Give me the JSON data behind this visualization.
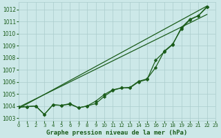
{
  "xlabel": "Graphe pression niveau de la mer (hPa)",
  "bg_color": "#cce8e8",
  "grid_color": "#aacccc",
  "line_color": "#1a5c1a",
  "text_color": "#1a5c1a",
  "ylim": [
    1002.8,
    1012.6
  ],
  "xlim": [
    0,
    23
  ],
  "yticks": [
    1003,
    1004,
    1005,
    1006,
    1007,
    1008,
    1009,
    1010,
    1011,
    1012
  ],
  "xticks": [
    0,
    1,
    2,
    3,
    4,
    5,
    6,
    7,
    8,
    9,
    10,
    11,
    12,
    13,
    14,
    15,
    16,
    17,
    18,
    19,
    20,
    21,
    22,
    23
  ],
  "series_lines": [
    {
      "x": [
        0,
        22
      ],
      "y": [
        1003.8,
        1012.3
      ]
    },
    {
      "x": [
        0,
        22
      ],
      "y": [
        1003.9,
        1011.6
      ]
    }
  ],
  "series_markers": [
    [
      1003.9,
      1003.95,
      1004.0,
      1003.3,
      1004.1,
      1004.05,
      1004.15,
      1003.85,
      1004.0,
      1004.2,
      1004.8,
      1005.3,
      1005.5,
      1005.5,
      1006.0,
      1006.2,
      1007.8,
      1008.5,
      1009.1,
      1010.5,
      1011.2,
      1011.5,
      1012.2
    ],
    [
      1003.9,
      1003.95,
      1004.0,
      1003.3,
      1004.1,
      1004.05,
      1004.2,
      1003.85,
      1004.0,
      1004.4,
      1004.95,
      1005.35,
      1005.5,
      1005.55,
      1006.05,
      1006.25,
      1007.2,
      1008.55,
      1009.15,
      1010.4,
      1011.15,
      1011.5,
      1012.25
    ]
  ],
  "marker": "D",
  "markersize": 2.5,
  "linewidth": 0.9,
  "ylabel_fontsize": 5.5,
  "xlabel_fontsize": 6.5,
  "tick_fontsize": 5.0
}
